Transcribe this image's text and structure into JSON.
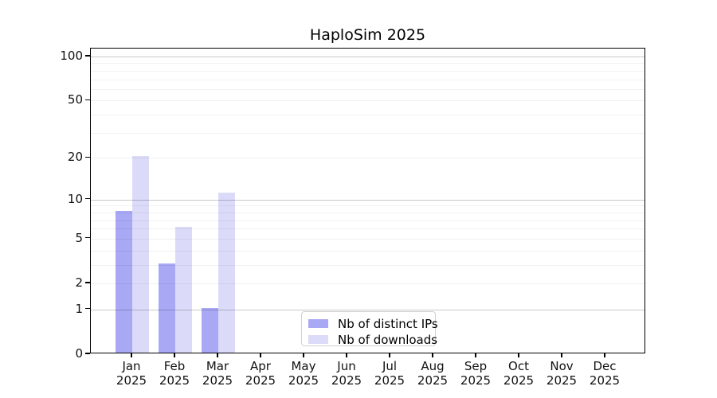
{
  "chart_data": {
    "type": "bar",
    "title": "HaploSim 2025",
    "categories": [
      "Jan 2025",
      "Feb 2025",
      "Mar 2025",
      "Apr 2025",
      "May 2025",
      "Jun 2025",
      "Jul 2025",
      "Aug 2025",
      "Sep 2025",
      "Oct 2025",
      "Nov 2025",
      "Dec 2025"
    ],
    "series": [
      {
        "name": "Nb of distinct IPs",
        "color": "#a8a8f4",
        "values": [
          8,
          3,
          1,
          0,
          0,
          0,
          0,
          0,
          0,
          0,
          0,
          0
        ]
      },
      {
        "name": "Nb of downloads",
        "color": "#dbdbf9",
        "values": [
          20,
          6,
          11,
          0,
          0,
          0,
          0,
          0,
          0,
          0,
          0,
          0
        ]
      }
    ],
    "yscale": "log1p",
    "ylim": [
      0,
      100
    ],
    "ytick_labels": [
      0,
      1,
      2,
      5,
      10,
      20,
      50,
      100
    ],
    "major_gridlines": [
      1,
      10,
      100
    ],
    "minor_gridlines": [
      2,
      3,
      4,
      5,
      6,
      7,
      8,
      9,
      20,
      30,
      40,
      50,
      60,
      70,
      80,
      90
    ],
    "grid": "on",
    "legend_position": "lower center inside",
    "colors": {
      "axis": "#000000",
      "grid_major": "#c9c9c9",
      "grid_minor": "#f0f0f0"
    }
  }
}
